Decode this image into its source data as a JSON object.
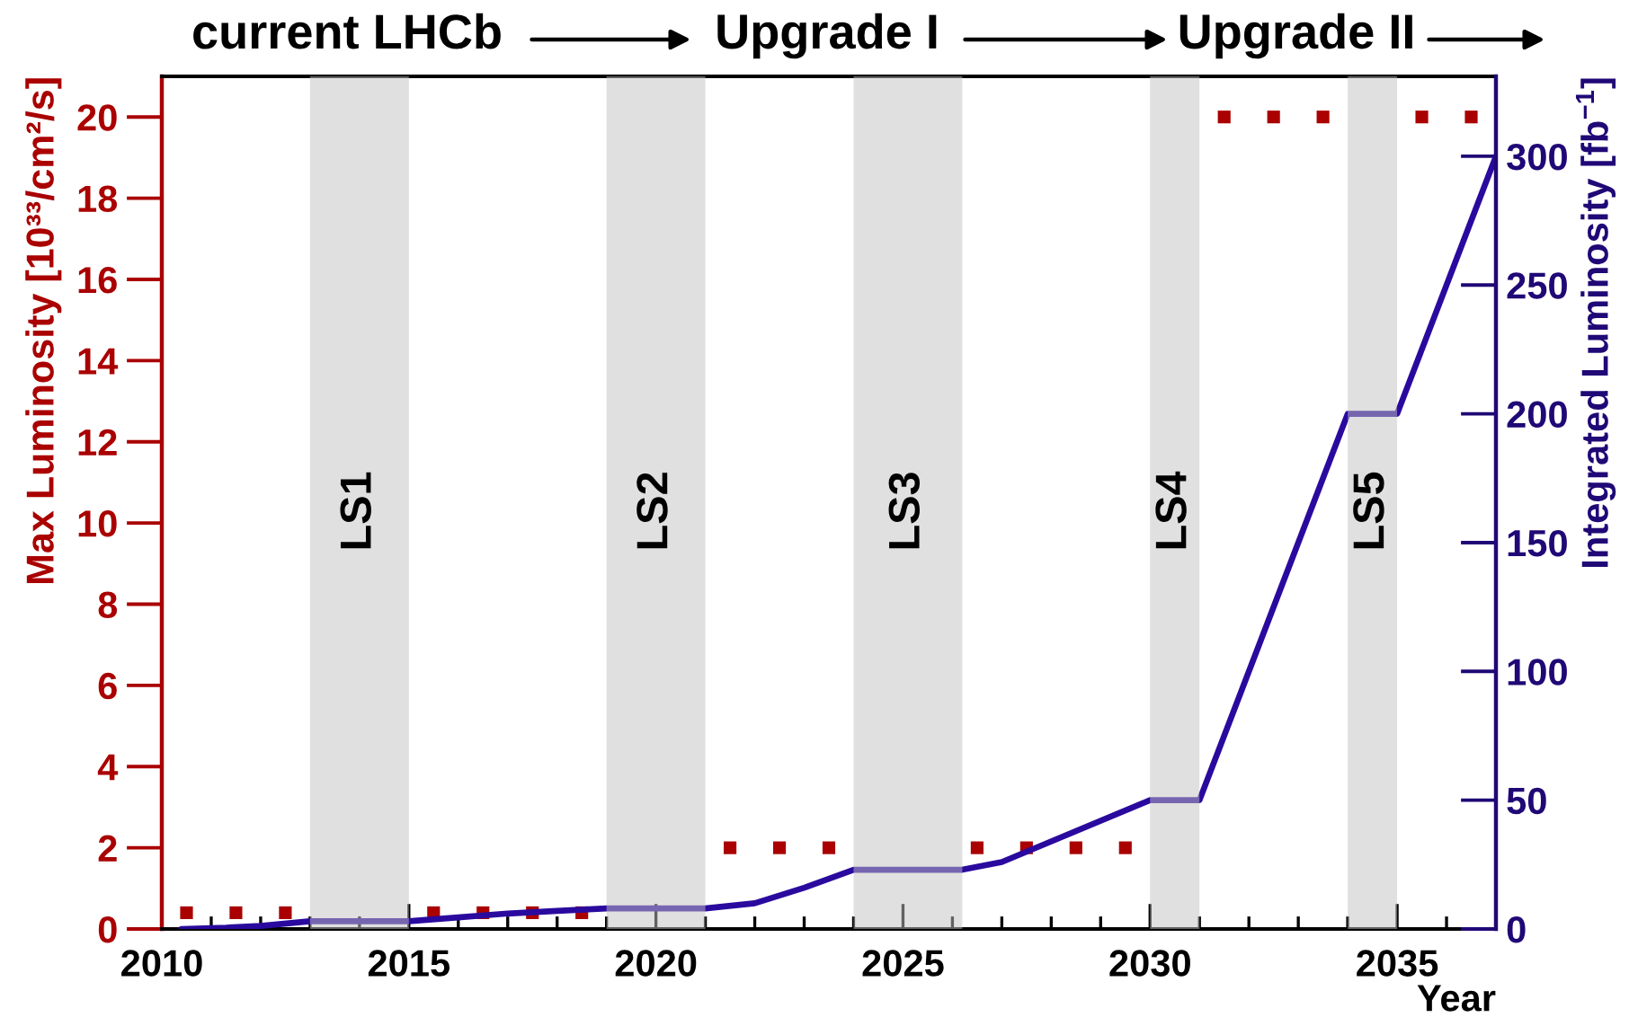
{
  "chart_data": {
    "type": "scatter",
    "xlabel": "Year",
    "ylabel": "Max Luminosity [10³³/cm²/s]",
    "y2label": "Integrated Luminosity [fb$^{−1}$]",
    "xlim": [
      2010,
      2037
    ],
    "xticks": [
      2010,
      2015,
      2020,
      2025,
      2030,
      2035
    ],
    "ylim": [
      0,
      21
    ],
    "yticks": [
      0,
      2,
      4,
      6,
      8,
      10,
      12,
      14,
      16,
      18,
      20
    ],
    "y2lim": [
      0,
      331
    ],
    "y2ticks": [
      0,
      50,
      100,
      150,
      200,
      250,
      300
    ],
    "series": [
      {
        "marker": "square",
        "color": "#aa0000",
        "x": [
          2010.5,
          2011.5,
          2012.5,
          2015.5,
          2016.5,
          2017.5,
          2018.5,
          2021.5,
          2022.5,
          2023.5,
          2026.5,
          2027.5,
          2028.5,
          2029.5,
          2031.5,
          2032.5,
          2033.5,
          2035.5,
          2036.5
        ],
        "values": [
          0.4,
          0.4,
          0.4,
          0.4,
          0.4,
          0.4,
          0.4,
          2,
          2,
          2,
          2,
          2,
          2,
          2,
          20,
          20,
          20,
          20,
          20
        ]
      },
      {
        "type": "line",
        "axis": "y2",
        "line_style": "solid",
        "color": "#2a0a9e",
        "x": [
          2010.4,
          2011.3,
          2012,
          2013,
          2015,
          2016,
          2017,
          2018,
          2019,
          2021,
          2022,
          2023,
          2024,
          2026.2,
          2027,
          2030,
          2031,
          2034,
          2035,
          2037
        ],
        "values": [
          0,
          0.5,
          1.2,
          3,
          3,
          4.5,
          6,
          7,
          8,
          8,
          10,
          16,
          23,
          23,
          26,
          50,
          50,
          200,
          200,
          300
        ]
      }
    ],
    "bands": [
      {
        "axis": "x",
        "from": 2013,
        "to": 2015,
        "label": "LS1",
        "color": "#e0e0e0"
      },
      {
        "axis": "x",
        "from": 2019,
        "to": 2021,
        "label": "LS2",
        "color": "#e0e0e0"
      },
      {
        "axis": "x",
        "from": 2024,
        "to": 2026.2,
        "label": "LS3",
        "color": "#e0e0e0"
      },
      {
        "axis": "x",
        "from": 2030,
        "to": 2031,
        "label": "LS4",
        "color": "#e0e0e0"
      },
      {
        "axis": "x",
        "from": 2034,
        "to": 2035,
        "label": "LS5",
        "color": "#e0e0e0"
      }
    ],
    "annotations": [
      "current LHCb",
      "Upgrade I",
      "Upgrade II"
    ]
  }
}
